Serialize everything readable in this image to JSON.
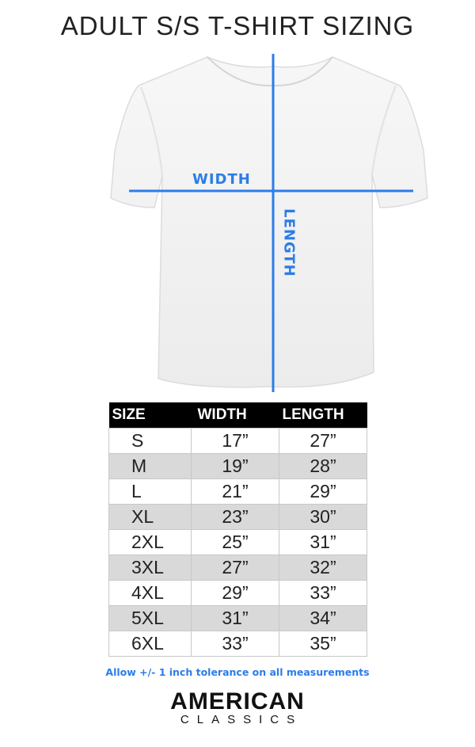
{
  "title": "ADULT S/S T-SHIRT SIZING",
  "diagram": {
    "width_label": "WIDTH",
    "length_label": "LENGTH",
    "accent_color": "#2b7de9"
  },
  "table": {
    "headers": [
      "SIZE",
      "WIDTH",
      "LENGTH"
    ],
    "rows": [
      {
        "size": "S",
        "width": "17”",
        "length": "27”"
      },
      {
        "size": "M",
        "width": "19”",
        "length": "28”"
      },
      {
        "size": "L",
        "width": "21”",
        "length": "29”"
      },
      {
        "size": "XL",
        "width": "23”",
        "length": "30”"
      },
      {
        "size": "2XL",
        "width": "25”",
        "length": "31”"
      },
      {
        "size": "3XL",
        "width": "27”",
        "length": "32”"
      },
      {
        "size": "4XL",
        "width": "29”",
        "length": "33”"
      },
      {
        "size": "5XL",
        "width": "31”",
        "length": "34”"
      },
      {
        "size": "6XL",
        "width": "33”",
        "length": "35”"
      }
    ]
  },
  "note": "Allow +/- 1 inch tolerance on all measurements",
  "brand": {
    "line1": "AMERICAN",
    "line2": "CLASSICS"
  }
}
